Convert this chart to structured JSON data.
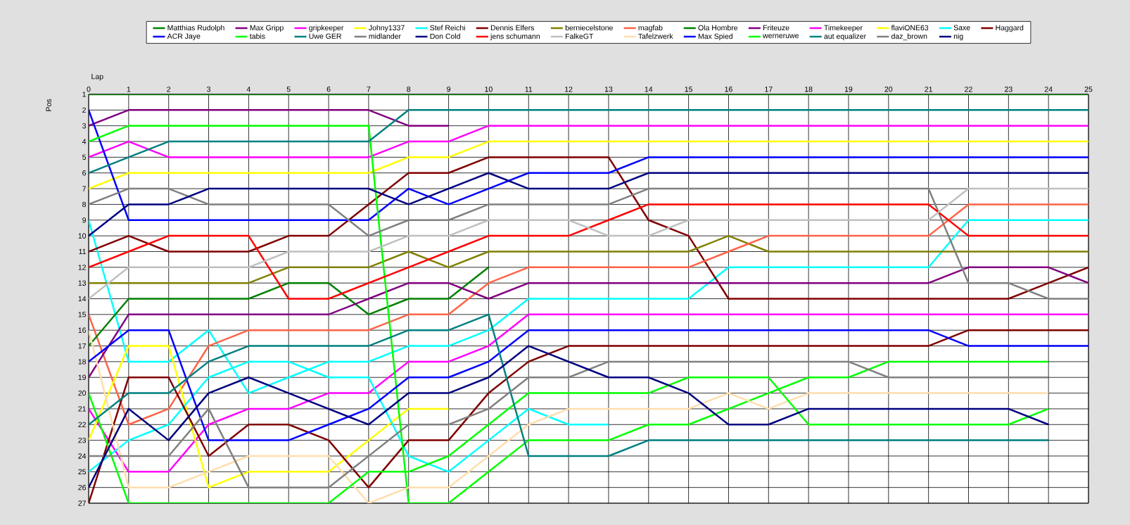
{
  "chart_data": {
    "type": "line",
    "xlabel": "Lap",
    "ylabel": "Pos",
    "xlim": [
      0,
      25
    ],
    "ylim": [
      27,
      1
    ],
    "xticks": [
      0,
      1,
      2,
      3,
      4,
      5,
      6,
      7,
      8,
      9,
      10,
      11,
      12,
      13,
      14,
      15,
      16,
      17,
      18,
      19,
      20,
      21,
      22,
      23,
      24,
      25
    ],
    "yticks": [
      1,
      2,
      3,
      4,
      5,
      6,
      7,
      8,
      9,
      10,
      11,
      12,
      13,
      14,
      15,
      16,
      17,
      18,
      19,
      20,
      21,
      22,
      23,
      24,
      25,
      26,
      27
    ],
    "grid": true,
    "legend": "top",
    "x": [
      0,
      1,
      2,
      3,
      4,
      5,
      6,
      7,
      8,
      9,
      10,
      11,
      12,
      13,
      14,
      15,
      16,
      17,
      18,
      19,
      20,
      21,
      22,
      23,
      24,
      25
    ],
    "series": [
      {
        "name": "Matthias  Rudolph",
        "color": "#008000",
        "values": [
          1,
          1,
          1,
          1,
          1,
          1,
          1,
          1,
          1,
          1,
          1,
          1,
          1,
          1,
          1,
          1,
          1,
          1,
          1,
          1,
          1,
          1,
          1,
          1,
          1,
          1
        ]
      },
      {
        "name": "ACR Jaye",
        "color": "#0000ff",
        "values": [
          2,
          9,
          9,
          9,
          9,
          9,
          9,
          9,
          7,
          8,
          7,
          6,
          6,
          6,
          5,
          5,
          5,
          5,
          5,
          5,
          5,
          5,
          5,
          5,
          5,
          5
        ]
      },
      {
        "name": "Max Gripp",
        "color": "#800080",
        "values": [
          3,
          2,
          2,
          2,
          2,
          2,
          2,
          2,
          3,
          3,
          null,
          null,
          null,
          null,
          null,
          null,
          null,
          null,
          null,
          null,
          null,
          null,
          null,
          null,
          null,
          null
        ]
      },
      {
        "name": "tabis",
        "color": "#00ff00",
        "values": [
          4,
          3,
          3,
          3,
          3,
          3,
          3,
          3,
          27,
          27,
          25,
          23,
          23,
          23,
          22,
          22,
          21,
          20,
          19,
          19,
          18,
          18,
          18,
          18,
          18,
          null
        ]
      },
      {
        "name": "gripkeeper",
        "color": "#ff00ff",
        "values": [
          5,
          4,
          5,
          5,
          5,
          5,
          5,
          5,
          4,
          4,
          3,
          3,
          3,
          3,
          3,
          3,
          3,
          3,
          3,
          3,
          3,
          3,
          3,
          3,
          3,
          3
        ]
      },
      {
        "name": "Uwe GER",
        "color": "#008080",
        "values": [
          6,
          5,
          4,
          4,
          4,
          4,
          4,
          4,
          2,
          2,
          2,
          2,
          2,
          2,
          2,
          2,
          2,
          2,
          2,
          2,
          2,
          2,
          2,
          2,
          2,
          2
        ]
      },
      {
        "name": "Johny1337",
        "color": "#ffff00",
        "values": [
          7,
          6,
          6,
          6,
          6,
          6,
          6,
          6,
          5,
          5,
          4,
          4,
          4,
          4,
          4,
          4,
          4,
          4,
          4,
          4,
          4,
          4,
          4,
          4,
          4,
          4
        ]
      },
      {
        "name": "midlander",
        "color": "#808080",
        "values": [
          8,
          7,
          7,
          8,
          8,
          8,
          8,
          10,
          9,
          9,
          8,
          8,
          8,
          8,
          7,
          7,
          7,
          7,
          7,
          7,
          7,
          7,
          13,
          13,
          14,
          14
        ]
      },
      {
        "name": "Stef Reichi",
        "color": "#00ffff",
        "values": [
          9,
          18,
          18,
          16,
          20,
          19,
          18,
          18,
          17,
          17,
          16,
          14,
          14,
          14,
          14,
          14,
          12,
          12,
          12,
          12,
          12,
          12,
          9,
          9,
          9,
          9
        ]
      },
      {
        "name": "Don Cold",
        "color": "#000080",
        "values": [
          10,
          8,
          8,
          7,
          7,
          7,
          7,
          7,
          8,
          7,
          6,
          7,
          7,
          7,
          6,
          6,
          6,
          6,
          6,
          6,
          6,
          6,
          6,
          6,
          6,
          6
        ]
      },
      {
        "name": "Dennis Elfers",
        "color": "#800000",
        "values": [
          11,
          10,
          11,
          11,
          11,
          10,
          10,
          8,
          6,
          6,
          5,
          5,
          5,
          5,
          9,
          10,
          14,
          14,
          14,
          14,
          14,
          14,
          14,
          14,
          13,
          12
        ]
      },
      {
        "name": "jens  schumann",
        "color": "#ff0000",
        "values": [
          12,
          11,
          10,
          10,
          10,
          14,
          14,
          13,
          12,
          11,
          10,
          10,
          10,
          9,
          8,
          8,
          8,
          8,
          8,
          8,
          8,
          8,
          10,
          10,
          10,
          10
        ]
      },
      {
        "name": "berniecelstone",
        "color": "#808000",
        "values": [
          13,
          13,
          13,
          13,
          13,
          12,
          12,
          12,
          11,
          12,
          11,
          11,
          11,
          11,
          11,
          11,
          10,
          11,
          11,
          11,
          11,
          11,
          11,
          11,
          11,
          11
        ]
      },
      {
        "name": "FalkeGT",
        "color": "#c0c0c0",
        "values": [
          14,
          12,
          12,
          12,
          12,
          11,
          11,
          11,
          10,
          10,
          9,
          9,
          9,
          10,
          10,
          9,
          9,
          9,
          9,
          9,
          9,
          9,
          7,
          7,
          7,
          7
        ]
      },
      {
        "name": "magfab",
        "color": "#ff6347",
        "values": [
          15,
          22,
          21,
          17,
          16,
          16,
          16,
          16,
          15,
          15,
          13,
          12,
          12,
          12,
          12,
          12,
          11,
          10,
          10,
          10,
          10,
          10,
          8,
          8,
          8,
          8
        ]
      },
      {
        "name": "Tafelzwerk",
        "color": "#ffdead",
        "values": [
          16,
          26,
          26,
          25,
          24,
          24,
          24,
          27,
          26,
          26,
          24,
          22,
          21,
          21,
          21,
          21,
          20,
          21,
          20,
          20,
          20,
          20,
          20,
          20,
          20,
          null
        ]
      },
      {
        "name": "Ola Hombre",
        "color": "#008000",
        "values": [
          17,
          14,
          14,
          14,
          14,
          13,
          13,
          15,
          14,
          14,
          12,
          null,
          null,
          null,
          null,
          null,
          null,
          null,
          null,
          null,
          null,
          null,
          null,
          null,
          null,
          null
        ]
      },
      {
        "name": "Max Spied",
        "color": "#0000ff",
        "values": [
          18,
          16,
          16,
          23,
          23,
          23,
          22,
          21,
          19,
          19,
          18,
          16,
          16,
          16,
          16,
          16,
          16,
          16,
          16,
          16,
          16,
          16,
          17,
          17,
          17,
          17
        ]
      },
      {
        "name": "Friteuze",
        "color": "#800080",
        "values": [
          19,
          15,
          15,
          15,
          15,
          15,
          15,
          14,
          13,
          13,
          14,
          13,
          13,
          13,
          13,
          13,
          13,
          13,
          13,
          13,
          13,
          13,
          12,
          12,
          12,
          13
        ]
      },
      {
        "name": "werneruwe",
        "color": "#00ff00",
        "values": [
          20,
          27,
          27,
          27,
          27,
          27,
          27,
          25,
          25,
          24,
          22,
          20,
          20,
          20,
          20,
          19,
          19,
          19,
          22,
          22,
          22,
          22,
          22,
          22,
          21,
          null
        ]
      },
      {
        "name": "Timekeeper",
        "color": "#ff00ff",
        "values": [
          21,
          25,
          25,
          22,
          21,
          21,
          20,
          20,
          18,
          18,
          17,
          15,
          15,
          15,
          15,
          15,
          15,
          15,
          15,
          15,
          15,
          15,
          15,
          15,
          15,
          15
        ]
      },
      {
        "name": "aut equalizer",
        "color": "#008080",
        "values": [
          22,
          20,
          20,
          18,
          17,
          17,
          17,
          17,
          16,
          16,
          15,
          24,
          24,
          24,
          23,
          23,
          23,
          23,
          23,
          23,
          23,
          23,
          23,
          23,
          23,
          null
        ]
      },
      {
        "name": "flaviONE63",
        "color": "#ffff00",
        "values": [
          23,
          17,
          17,
          26,
          25,
          25,
          25,
          23,
          21,
          21,
          null,
          null,
          null,
          null,
          null,
          null,
          null,
          null,
          null,
          null,
          null,
          null,
          null,
          null,
          null,
          null
        ]
      },
      {
        "name": "daz_brown",
        "color": "#808080",
        "values": [
          24,
          24,
          24,
          21,
          26,
          26,
          26,
          24,
          22,
          22,
          21,
          19,
          19,
          18,
          18,
          18,
          18,
          18,
          18,
          18,
          19,
          19,
          19,
          19,
          19,
          null
        ]
      },
      {
        "name": "Saxe",
        "color": "#00ffff",
        "values": [
          25,
          23,
          22,
          19,
          18,
          18,
          19,
          19,
          24,
          25,
          23,
          21,
          22,
          22,
          null,
          null,
          null,
          null,
          null,
          null,
          null,
          null,
          null,
          null,
          null,
          null
        ]
      },
      {
        "name": "nig",
        "color": "#000080",
        "values": [
          26,
          21,
          23,
          20,
          19,
          20,
          21,
          22,
          20,
          20,
          19,
          17,
          18,
          19,
          19,
          20,
          22,
          22,
          21,
          21,
          21,
          21,
          21,
          21,
          22,
          null
        ]
      },
      {
        "name": "Haggard",
        "color": "#800000",
        "values": [
          27,
          19,
          19,
          24,
          22,
          22,
          23,
          26,
          23,
          23,
          20,
          18,
          17,
          17,
          17,
          17,
          17,
          17,
          17,
          17,
          17,
          17,
          16,
          16,
          16,
          16
        ]
      }
    ]
  }
}
